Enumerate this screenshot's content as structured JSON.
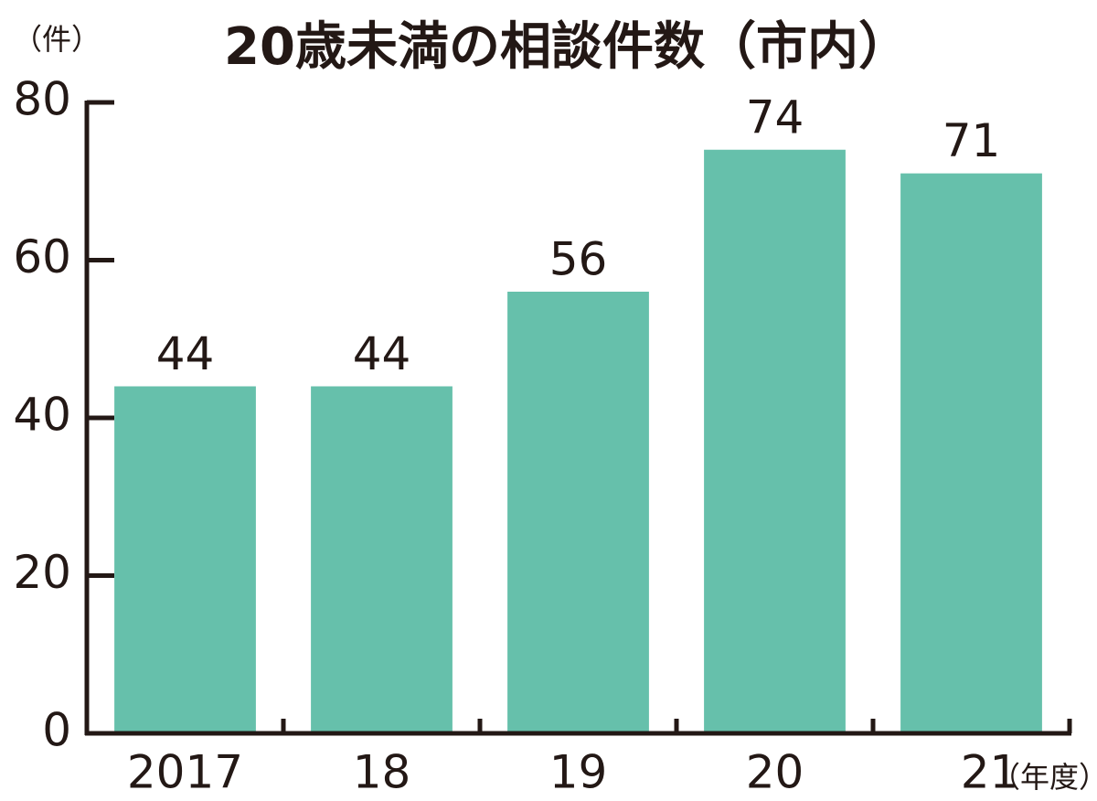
{
  "chart_data": {
    "type": "bar",
    "title": "20歳未満の相談件数（市内）",
    "y_label": "（件）",
    "x_label": "（年度）",
    "categories": [
      "2017",
      "18",
      "19",
      "20",
      "21"
    ],
    "values": [
      44,
      44,
      56,
      74,
      71
    ],
    "color": "#66c0ab",
    "ylim": [
      0,
      80
    ],
    "yticks": [
      0,
      20,
      40,
      60,
      80
    ],
    "grid": false
  }
}
